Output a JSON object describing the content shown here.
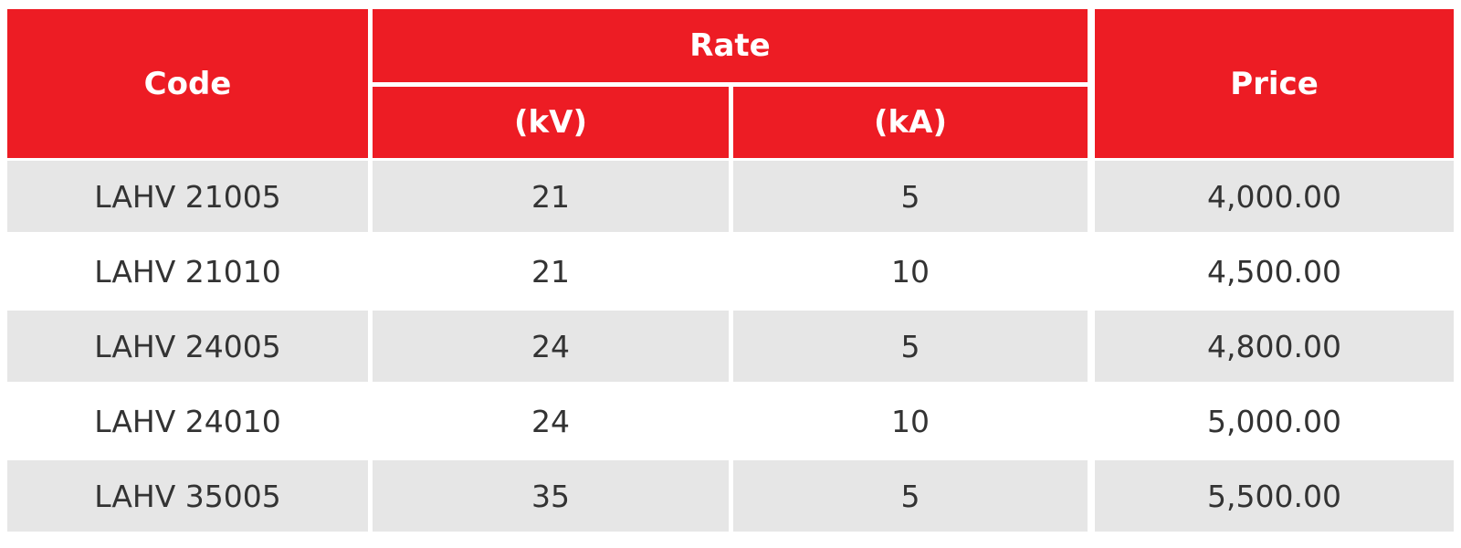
{
  "table": {
    "header": {
      "code": "Code",
      "rate": "Rate",
      "kv": "(kV)",
      "ka": "(kA)",
      "price": "Price"
    },
    "rows": [
      [
        "LAHV 21005",
        "21",
        "5",
        "4,000.00"
      ],
      [
        "LAHV 21010",
        "21",
        "10",
        "4,500.00"
      ],
      [
        "LAHV 24005",
        "24",
        "5",
        "4,800.00"
      ],
      [
        "LAHV 24010",
        "24",
        "10",
        "5,000.00"
      ],
      [
        "LAHV 35005",
        "35",
        "5",
        "5,500.00"
      ]
    ]
  }
}
